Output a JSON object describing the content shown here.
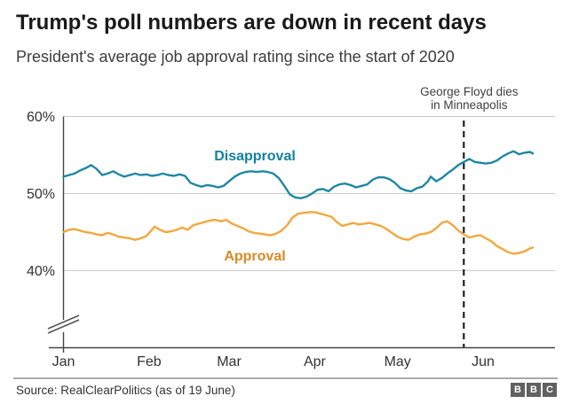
{
  "header": {
    "title": "Trump's poll numbers are down in recent days",
    "subtitle": "President's average job approval rating since the start of 2020"
  },
  "annotation": {
    "line1": "George Floyd dies",
    "line2": "in Minneapolis"
  },
  "footer": {
    "source": "Source: RealClearPolitics (as of 19 June)",
    "logo": [
      "B",
      "B",
      "C"
    ]
  },
  "chart_data": {
    "type": "line",
    "title": "Trump's poll numbers are down in recent days",
    "subtitle": "President's average job approval rating since the start of 2020",
    "xlabel": "",
    "ylabel": "",
    "grid": true,
    "legend_position": "inline-labels",
    "x_axis": {
      "tick_labels": [
        "Jan",
        "Feb",
        "Mar",
        "Apr",
        "May",
        "Jun"
      ],
      "tick_days": [
        0,
        31,
        60,
        91,
        121,
        152
      ],
      "domain_days": [
        0,
        170
      ],
      "domain_note": "day 0 = 1 Jan 2020, day 170 = 19 June 2020"
    },
    "y_axis": {
      "tick_labels": [
        "60%",
        "50%",
        "40%"
      ],
      "tick_values": [
        60,
        50,
        40
      ],
      "range_shown": [
        40,
        60
      ],
      "baseline_value": 30,
      "axis_break": true
    },
    "annotation_day": 145,
    "annotation_text": "George Floyd dies in Minneapolis",
    "colors": {
      "disapproval_line": "#1E87A5",
      "disapproval_label": "#1380A1",
      "approval_line": "#F3A73D",
      "approval_label": "#D98A26",
      "gridline": "#cccccc",
      "axis": "#444444",
      "dashed_event_line": "#222222"
    },
    "series": [
      {
        "name": "Disapproval",
        "color": "#1E87A5",
        "label_color": "#1380A1",
        "points": [
          [
            0,
            52.2
          ],
          [
            2,
            52.4
          ],
          [
            4,
            52.6
          ],
          [
            6,
            53.0
          ],
          [
            8,
            53.3
          ],
          [
            10,
            53.7
          ],
          [
            12,
            53.2
          ],
          [
            14,
            52.4
          ],
          [
            16,
            52.6
          ],
          [
            18,
            52.9
          ],
          [
            20,
            52.5
          ],
          [
            22,
            52.2
          ],
          [
            24,
            52.4
          ],
          [
            26,
            52.6
          ],
          [
            28,
            52.4
          ],
          [
            30,
            52.5
          ],
          [
            32,
            52.3
          ],
          [
            34,
            52.4
          ],
          [
            36,
            52.6
          ],
          [
            38,
            52.4
          ],
          [
            40,
            52.3
          ],
          [
            42,
            52.5
          ],
          [
            44,
            52.3
          ],
          [
            46,
            51.4
          ],
          [
            48,
            51.1
          ],
          [
            50,
            50.9
          ],
          [
            52,
            51.1
          ],
          [
            54,
            51.0
          ],
          [
            56,
            50.8
          ],
          [
            58,
            51.0
          ],
          [
            60,
            51.6
          ],
          [
            62,
            52.2
          ],
          [
            64,
            52.6
          ],
          [
            66,
            52.8
          ],
          [
            68,
            52.9
          ],
          [
            70,
            52.8
          ],
          [
            72,
            52.9
          ],
          [
            74,
            52.8
          ],
          [
            76,
            52.6
          ],
          [
            78,
            52.0
          ],
          [
            80,
            51.0
          ],
          [
            82,
            49.9
          ],
          [
            84,
            49.5
          ],
          [
            86,
            49.4
          ],
          [
            88,
            49.6
          ],
          [
            90,
            50.0
          ],
          [
            92,
            50.5
          ],
          [
            94,
            50.6
          ],
          [
            96,
            50.3
          ],
          [
            98,
            50.9
          ],
          [
            100,
            51.2
          ],
          [
            102,
            51.3
          ],
          [
            104,
            51.1
          ],
          [
            106,
            50.8
          ],
          [
            108,
            51.0
          ],
          [
            110,
            51.2
          ],
          [
            112,
            51.8
          ],
          [
            114,
            52.1
          ],
          [
            116,
            52.1
          ],
          [
            118,
            51.9
          ],
          [
            120,
            51.4
          ],
          [
            122,
            50.7
          ],
          [
            124,
            50.4
          ],
          [
            126,
            50.3
          ],
          [
            128,
            50.7
          ],
          [
            130,
            50.9
          ],
          [
            132,
            51.6
          ],
          [
            133,
            52.2
          ],
          [
            135,
            51.6
          ],
          [
            137,
            52.0
          ],
          [
            139,
            52.6
          ],
          [
            141,
            53.1
          ],
          [
            143,
            53.7
          ],
          [
            145,
            54.1
          ],
          [
            147,
            54.5
          ],
          [
            149,
            54.1
          ],
          [
            151,
            54.0
          ],
          [
            153,
            53.9
          ],
          [
            155,
            54.0
          ],
          [
            157,
            54.3
          ],
          [
            159,
            54.8
          ],
          [
            161,
            55.2
          ],
          [
            163,
            55.5
          ],
          [
            165,
            55.1
          ],
          [
            167,
            55.3
          ],
          [
            169,
            55.4
          ],
          [
            170,
            55.2
          ]
        ]
      },
      {
        "name": "Approval",
        "color": "#F3A73D",
        "label_color": "#D98A26",
        "points": [
          [
            0,
            45.0
          ],
          [
            2,
            45.3
          ],
          [
            4,
            45.4
          ],
          [
            6,
            45.2
          ],
          [
            8,
            45.0
          ],
          [
            10,
            44.9
          ],
          [
            12,
            44.7
          ],
          [
            14,
            44.6
          ],
          [
            16,
            44.9
          ],
          [
            18,
            44.7
          ],
          [
            20,
            44.4
          ],
          [
            22,
            44.3
          ],
          [
            24,
            44.2
          ],
          [
            26,
            44.0
          ],
          [
            28,
            44.2
          ],
          [
            30,
            44.5
          ],
          [
            32,
            45.3
          ],
          [
            33,
            45.7
          ],
          [
            35,
            45.3
          ],
          [
            37,
            45.0
          ],
          [
            39,
            45.1
          ],
          [
            41,
            45.3
          ],
          [
            43,
            45.6
          ],
          [
            45,
            45.3
          ],
          [
            47,
            45.9
          ],
          [
            49,
            46.1
          ],
          [
            51,
            46.3
          ],
          [
            53,
            46.5
          ],
          [
            55,
            46.6
          ],
          [
            57,
            46.4
          ],
          [
            59,
            46.6
          ],
          [
            61,
            46.1
          ],
          [
            63,
            45.8
          ],
          [
            65,
            45.5
          ],
          [
            67,
            45.1
          ],
          [
            69,
            44.9
          ],
          [
            71,
            44.8
          ],
          [
            73,
            44.7
          ],
          [
            75,
            44.6
          ],
          [
            77,
            44.8
          ],
          [
            79,
            45.2
          ],
          [
            81,
            45.9
          ],
          [
            83,
            46.9
          ],
          [
            85,
            47.4
          ],
          [
            87,
            47.5
          ],
          [
            89,
            47.6
          ],
          [
            91,
            47.6
          ],
          [
            93,
            47.4
          ],
          [
            95,
            47.2
          ],
          [
            97,
            47.0
          ],
          [
            99,
            46.3
          ],
          [
            101,
            45.8
          ],
          [
            103,
            46.0
          ],
          [
            105,
            46.2
          ],
          [
            107,
            46.0
          ],
          [
            109,
            46.1
          ],
          [
            111,
            46.2
          ],
          [
            113,
            46.0
          ],
          [
            115,
            45.8
          ],
          [
            117,
            45.4
          ],
          [
            119,
            44.9
          ],
          [
            121,
            44.4
          ],
          [
            123,
            44.1
          ],
          [
            125,
            44.0
          ],
          [
            127,
            44.4
          ],
          [
            129,
            44.7
          ],
          [
            131,
            44.8
          ],
          [
            133,
            45.0
          ],
          [
            135,
            45.5
          ],
          [
            137,
            46.2
          ],
          [
            139,
            46.4
          ],
          [
            141,
            45.9
          ],
          [
            143,
            45.2
          ],
          [
            145,
            44.7
          ],
          [
            147,
            44.3
          ],
          [
            149,
            44.5
          ],
          [
            151,
            44.6
          ],
          [
            153,
            44.2
          ],
          [
            155,
            43.8
          ],
          [
            157,
            43.2
          ],
          [
            159,
            42.8
          ],
          [
            161,
            42.4
          ],
          [
            163,
            42.2
          ],
          [
            165,
            42.3
          ],
          [
            167,
            42.5
          ],
          [
            169,
            42.9
          ],
          [
            170,
            43.0
          ]
        ]
      }
    ]
  }
}
